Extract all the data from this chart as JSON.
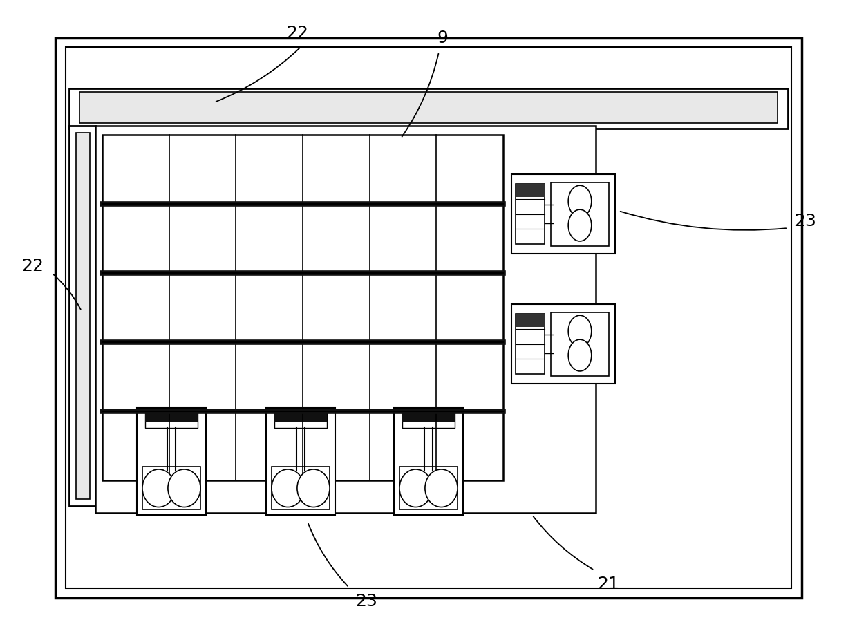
{
  "bg_color": "#ffffff",
  "line_color": "#000000",
  "figure_size": [
    12.4,
    9.1
  ],
  "dpi": 100
}
